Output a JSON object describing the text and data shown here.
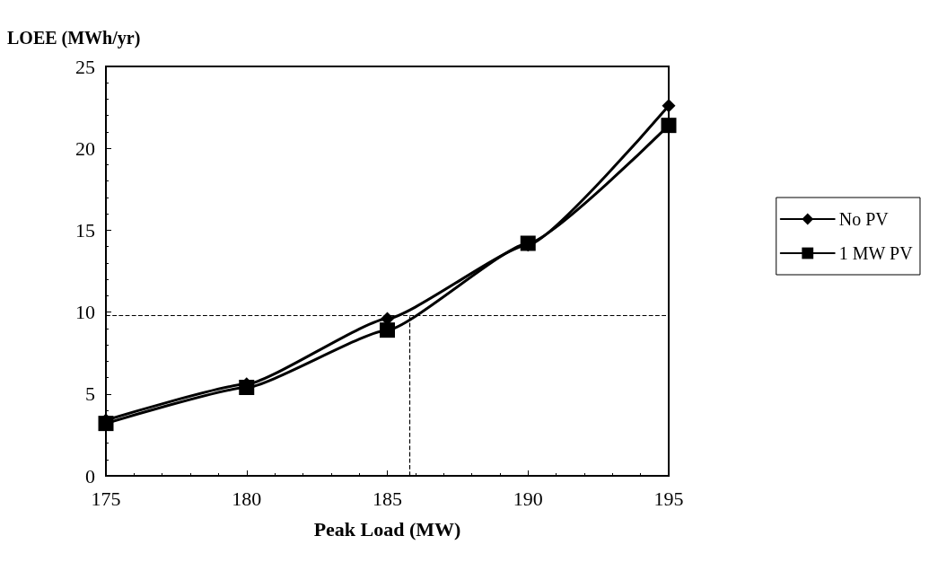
{
  "chart_data": {
    "type": "line",
    "ylabel": "LOEE (MWh/yr)",
    "xlabel": "Peak Load (MW)",
    "x": [
      175,
      180,
      185,
      190,
      195
    ],
    "series": [
      {
        "name": "No PV",
        "color": "#000000",
        "marker": "diamond",
        "values": [
          3.4,
          5.6,
          9.6,
          14.1,
          22.6
        ]
      },
      {
        "name": "1 MW PV",
        "color": "#000000",
        "marker": "square",
        "values": [
          3.2,
          5.4,
          8.9,
          14.2,
          21.4
        ]
      }
    ],
    "xlim": [
      175,
      195
    ],
    "xticks": [
      175,
      180,
      185,
      190,
      195
    ],
    "ylim": [
      0,
      25
    ],
    "yticks": [
      0,
      5,
      10,
      15,
      20,
      25
    ],
    "ref_lines": [
      {
        "axis": "y",
        "value": 9.8,
        "line_style": "dashed",
        "color": "#000000"
      },
      {
        "axis": "x",
        "value": 185.8,
        "line_style": "dashed",
        "color": "#000000"
      }
    ],
    "grid": false,
    "legend": "right",
    "line_style": "solid"
  }
}
